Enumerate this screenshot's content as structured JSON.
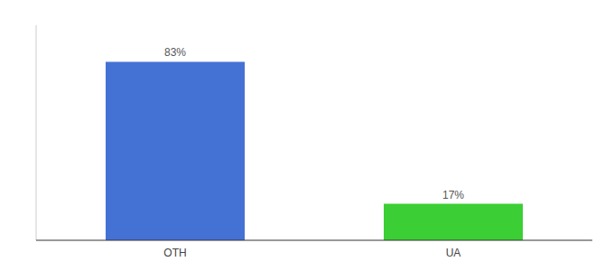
{
  "chart_data": {
    "type": "bar",
    "categories": [
      "OTH",
      "UA"
    ],
    "values": [
      83,
      17
    ],
    "value_labels": [
      "83%",
      "17%"
    ],
    "colors": [
      "#4472d4",
      "#3cce35"
    ],
    "ylim": [
      0,
      100
    ],
    "data_labels": true,
    "tick_labels": "x",
    "grid": false
  }
}
